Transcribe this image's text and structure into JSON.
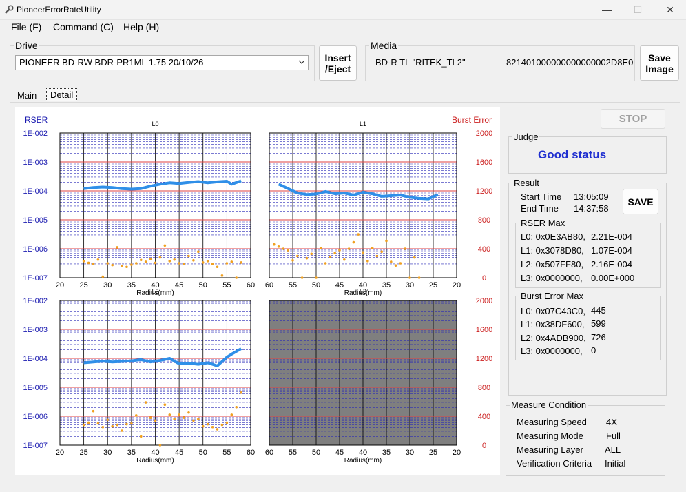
{
  "window": {
    "title": "PioneerErrorRateUtility",
    "minimize": "—",
    "maximize": "☐",
    "close": "✕"
  },
  "menu": [
    {
      "label": "File (F)"
    },
    {
      "label": "Command (C)"
    },
    {
      "label": "Help (H)"
    }
  ],
  "drive": {
    "label": "Drive",
    "selected": "PIONEER BD-RW BDR-PR1ML 1.75 20/10/26"
  },
  "insert_eject_label": "Insert\n/Eject",
  "media": {
    "label": "Media",
    "type": "BD-R TL \"RITEK_TL2\"",
    "id": "821401000000000000002D8E0"
  },
  "save_image_label": "Save\nImage",
  "tabs": [
    {
      "label": "Main"
    },
    {
      "label": "Detail"
    }
  ],
  "stop_label": "STOP",
  "judge": {
    "label": "Judge",
    "status": "Good status"
  },
  "result": {
    "label": "Result",
    "start_label": "Start Time",
    "start_time": "13:05:09",
    "end_label": "End Time",
    "end_time": "14:37:58",
    "save_label": "SAVE",
    "rser_max_label": "RSER Max",
    "rser_max": [
      {
        "addr": "L0: 0x0E3AB80,",
        "val": "2.21E-004"
      },
      {
        "addr": "L1: 0x3078D80,",
        "val": "1.07E-004"
      },
      {
        "addr": "L2: 0x507FF80,",
        "val": "2.16E-004"
      },
      {
        "addr": "L3: 0x0000000,",
        "val": "0.00E+000"
      }
    ],
    "burst_max_label": "Burst Error Max",
    "burst_max": [
      {
        "addr": "L0: 0x07C43C0,",
        "val": "445"
      },
      {
        "addr": "L1: 0x38DF600,",
        "val": "599"
      },
      {
        "addr": "L2: 0x4ADB900,",
        "val": "726"
      },
      {
        "addr": "L3: 0x0000000,",
        "val": "0"
      }
    ]
  },
  "measure": {
    "label": "Measure Condition",
    "rows": [
      {
        "key": "Measuring Speed",
        "val": "4X"
      },
      {
        "key": "Measuring Mode",
        "val": "Full"
      },
      {
        "key": "Measuring Layer",
        "val": "ALL"
      },
      {
        "key": "Verification Criteria",
        "val": "Initial"
      }
    ]
  },
  "colors": {
    "rser_line": "#2f8fe8",
    "burst_points": "#f0a020",
    "decade_line": "#e04040",
    "grid_minor": "#2a2ab8",
    "disabled_panel": "#7f7f7f",
    "judge_text": "#1f2fd0"
  },
  "chart_data": {
    "type": "line",
    "left_axis_label": "RSER",
    "right_axis_label": "Burst Error",
    "xlabel": "Radius(mm)",
    "y_left_ticks": [
      "1E-002",
      "1E-003",
      "1E-004",
      "1E-005",
      "1E-006",
      "1E-007"
    ],
    "y_right_ticks": [
      "2000",
      "1600",
      "1200",
      "800",
      "400",
      "0"
    ],
    "x_ticks_ascending": [
      "20",
      "25",
      "30",
      "35",
      "40",
      "45",
      "50",
      "55",
      "60"
    ],
    "x_ticks_descending": [
      "60",
      "55",
      "50",
      "45",
      "40",
      "35",
      "30",
      "25",
      "20"
    ],
    "rser_log_range": [
      -7,
      -2
    ],
    "burst_range": [
      0,
      2000
    ],
    "panels": [
      {
        "title": "L0",
        "x_direction": "ascending",
        "disabled": false,
        "rser": [
          [
            25,
            0.00012
          ],
          [
            27,
            0.00013
          ],
          [
            29,
            0.000135
          ],
          [
            31,
            0.00013
          ],
          [
            33,
            0.00012
          ],
          [
            35,
            0.000115
          ],
          [
            37,
            0.00012
          ],
          [
            39,
            0.000145
          ],
          [
            41,
            0.00017
          ],
          [
            43,
            0.00019
          ],
          [
            45,
            0.00018
          ],
          [
            47,
            0.000195
          ],
          [
            49,
            0.00021
          ],
          [
            51,
            0.00019
          ],
          [
            53,
            0.000205
          ],
          [
            55,
            0.000215
          ],
          [
            56,
            0.00017
          ],
          [
            58,
            0.000221
          ]
        ],
        "burst": [
          [
            25,
            230
          ],
          [
            26,
            205
          ],
          [
            27,
            190
          ],
          [
            28,
            250
          ],
          [
            29,
            15
          ],
          [
            30,
            200
          ],
          [
            31,
            175
          ],
          [
            32,
            420
          ],
          [
            33,
            160
          ],
          [
            34,
            150
          ],
          [
            35,
            180
          ],
          [
            36,
            200
          ],
          [
            37,
            245
          ],
          [
            38,
            220
          ],
          [
            39,
            260
          ],
          [
            40,
            205
          ],
          [
            41,
            280
          ],
          [
            42,
            445
          ],
          [
            43,
            230
          ],
          [
            44,
            250
          ],
          [
            45,
            200
          ],
          [
            46,
            190
          ],
          [
            47,
            300
          ],
          [
            48,
            240
          ],
          [
            49,
            360
          ],
          [
            50,
            210
          ],
          [
            51,
            230
          ],
          [
            52,
            190
          ],
          [
            53,
            150
          ],
          [
            54,
            30
          ],
          [
            55,
            200
          ],
          [
            56,
            220
          ],
          [
            57,
            0
          ],
          [
            58,
            210
          ]
        ]
      },
      {
        "title": "L1",
        "x_direction": "descending",
        "disabled": false,
        "rser": [
          [
            58,
            0.00017
          ],
          [
            56,
            0.00012
          ],
          [
            54,
            8.5e-05
          ],
          [
            52,
            7.5e-05
          ],
          [
            50,
            7.8e-05
          ],
          [
            48,
            9.5e-05
          ],
          [
            46,
            8e-05
          ],
          [
            44,
            8.5e-05
          ],
          [
            42,
            7.2e-05
          ],
          [
            40,
            9e-05
          ],
          [
            38,
            8e-05
          ],
          [
            36,
            6.5e-05
          ],
          [
            34,
            6.8e-05
          ],
          [
            32,
            7.2e-05
          ],
          [
            30,
            6e-05
          ],
          [
            28,
            5.5e-05
          ],
          [
            26,
            5.3e-05
          ],
          [
            24,
            7.5e-05
          ]
        ],
        "burst": [
          [
            59,
            460
          ],
          [
            58,
            430
          ],
          [
            57,
            400
          ],
          [
            56,
            380
          ],
          [
            55,
            240
          ],
          [
            54,
            300
          ],
          [
            53,
            0
          ],
          [
            52,
            270
          ],
          [
            51,
            330
          ],
          [
            50,
            0
          ],
          [
            49,
            410
          ],
          [
            48,
            200
          ],
          [
            47,
            290
          ],
          [
            46,
            340
          ],
          [
            45,
            380
          ],
          [
            44,
            250
          ],
          [
            43,
            400
          ],
          [
            42,
            490
          ],
          [
            41,
            599
          ],
          [
            40,
            350
          ],
          [
            39,
            230
          ],
          [
            38,
            410
          ],
          [
            37,
            300
          ],
          [
            36,
            360
          ],
          [
            35,
            510
          ],
          [
            34,
            220
          ],
          [
            33,
            170
          ],
          [
            32,
            200
          ],
          [
            31,
            400
          ],
          [
            30,
            0
          ],
          [
            29,
            280
          ],
          [
            28,
            0
          ]
        ]
      },
      {
        "title": "L2",
        "x_direction": "ascending",
        "disabled": false,
        "rser": [
          [
            25,
            7e-05
          ],
          [
            27,
            7.5e-05
          ],
          [
            29,
            8e-05
          ],
          [
            31,
            7.5e-05
          ],
          [
            33,
            7.8e-05
          ],
          [
            35,
            8.2e-05
          ],
          [
            37,
            9e-05
          ],
          [
            39,
            7.5e-05
          ],
          [
            41,
            8.5e-05
          ],
          [
            43,
            0.0001
          ],
          [
            45,
            6.5e-05
          ],
          [
            47,
            6.8e-05
          ],
          [
            49,
            6.2e-05
          ],
          [
            51,
            7e-05
          ],
          [
            53,
            5.5e-05
          ],
          [
            55,
            0.00011
          ],
          [
            56,
            0.00014
          ],
          [
            58,
            0.000216
          ]
        ],
        "burst": [
          [
            25,
            280
          ],
          [
            26,
            310
          ],
          [
            27,
            470
          ],
          [
            28,
            300
          ],
          [
            29,
            250
          ],
          [
            30,
            350
          ],
          [
            31,
            260
          ],
          [
            32,
            280
          ],
          [
            33,
            200
          ],
          [
            34,
            290
          ],
          [
            35,
            300
          ],
          [
            36,
            410
          ],
          [
            37,
            120
          ],
          [
            38,
            590
          ],
          [
            39,
            380
          ],
          [
            40,
            340
          ],
          [
            41,
            0
          ],
          [
            42,
            560
          ],
          [
            43,
            420
          ],
          [
            44,
            360
          ],
          [
            45,
            420
          ],
          [
            46,
            380
          ],
          [
            47,
            450
          ],
          [
            48,
            340
          ],
          [
            49,
            360
          ],
          [
            50,
            260
          ],
          [
            51,
            290
          ],
          [
            52,
            250
          ],
          [
            53,
            220
          ],
          [
            54,
            280
          ],
          [
            55,
            310
          ],
          [
            56,
            420
          ],
          [
            57,
            526
          ],
          [
            58,
            726
          ]
        ]
      },
      {
        "title": "L3",
        "x_direction": "descending",
        "disabled": true,
        "rser": [],
        "burst": []
      }
    ]
  }
}
